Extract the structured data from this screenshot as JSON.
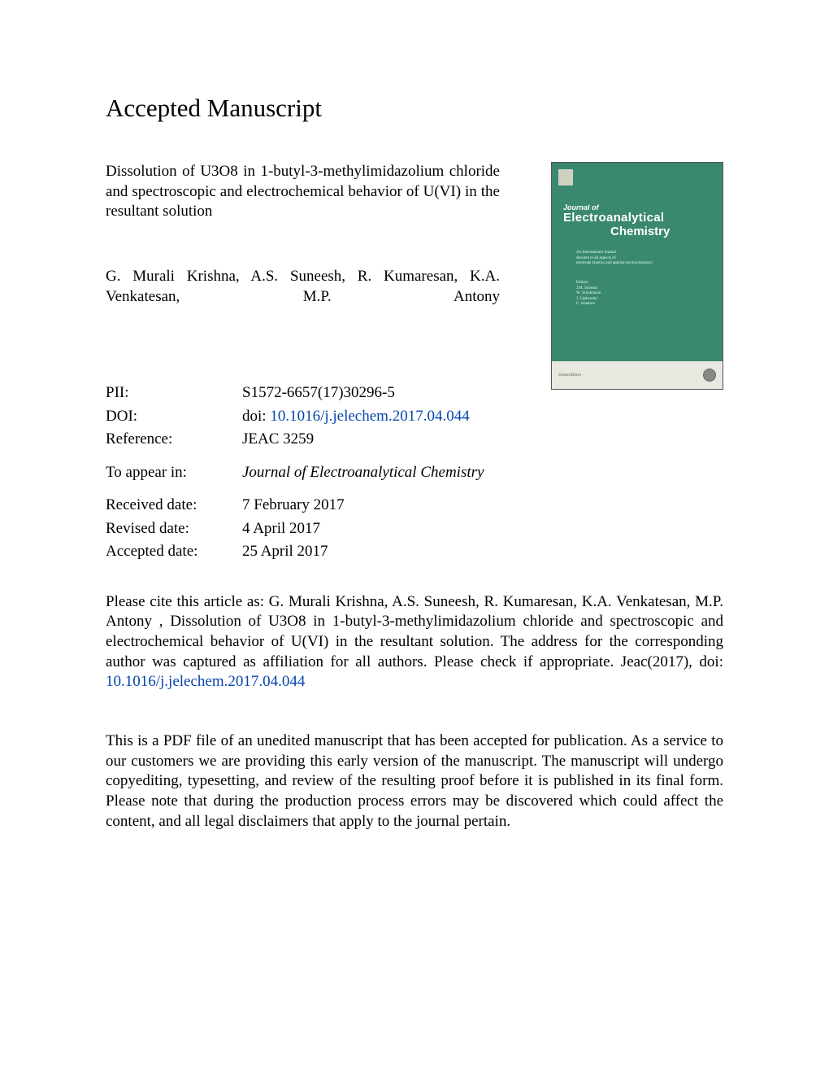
{
  "heading": "Accepted Manuscript",
  "article_title": "Dissolution of U3O8 in 1-butyl-3-methylimidazolium chloride and spectroscopic and electrochemical behavior of U(VI) in the resultant solution",
  "authors": "G. Murali Krishna, A.S. Suneesh, R. Kumaresan, K.A. Venkatesan, M.P. Antony",
  "meta": {
    "pii_label": "PII:",
    "pii_value": "S1572-6657(17)30296-5",
    "doi_label": "DOI:",
    "doi_prefix": "doi: ",
    "doi_link": "10.1016/j.jelechem.2017.04.044",
    "reference_label": "Reference:",
    "reference_value": "JEAC 3259",
    "appear_label": "To appear in:",
    "appear_value": "Journal of Electroanalytical Chemistry",
    "received_label": "Received date:",
    "received_value": "7 February 2017",
    "revised_label": "Revised date:",
    "revised_value": "4 April 2017",
    "accepted_label": "Accepted date:",
    "accepted_value": "25 April 2017"
  },
  "citation": {
    "pre": "Please cite this article as: G. Murali Krishna, A.S. Suneesh, R. Kumaresan, K.A. Venkatesan, M.P. Antony , Dissolution of U3O8 in 1-butyl-3-methylimidazolium chloride and spectroscopic and electrochemical behavior of U(VI) in the resultant solution. The address for the corresponding author was captured as affiliation for all authors. Please check if appropriate. Jeac(2017), doi: ",
    "link": "10.1016/j.jelechem.2017.04.044"
  },
  "disclaimer": "This is a PDF file of an unedited manuscript that has been accepted for publication. As a service to our customers we are providing this early version of the manuscript. The manuscript will undergo copyediting, typesetting, and review of the resulting proof before it is published in its final form. Please note that during the production process errors may be discovered which could affect the content, and all legal disclaimers that apply to the journal pertain.",
  "cover": {
    "journal_of": "Journal of",
    "line1": "Electroanalytical",
    "line2": "Chemistry",
    "background_color": "#3a8870",
    "bottombar_color": "#e8e8e0"
  }
}
